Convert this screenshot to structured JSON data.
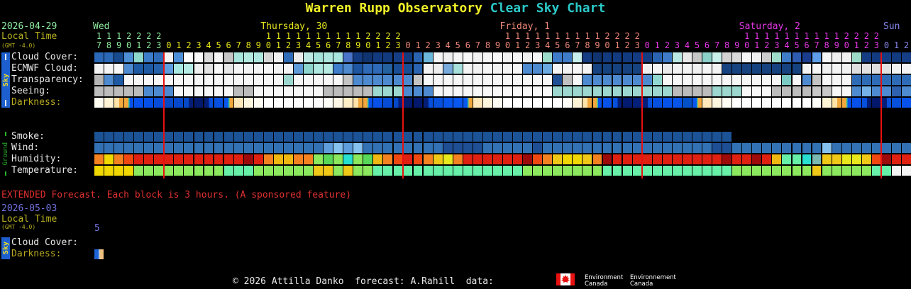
{
  "title": {
    "observatory": "Warren Rupp Observatory",
    "chart": "Clear Sky Chart"
  },
  "header": {
    "date": "2026-04-29",
    "local_time_label": "Local Time",
    "gmt_label": "(GMT -4.0)"
  },
  "extended": {
    "banner": "EXTENDED Forecast. Each block is 3 hours. (A sponsored feature)",
    "date": "2026-05-03",
    "local_time_label": "Local Time",
    "gmt_label": "(GMT -4.0)",
    "hour_label": "5"
  },
  "footer": {
    "credit": "© 2026 Attilla Danko  forecast: A.Rahill  data:",
    "flag_icon": "canada-flag-icon",
    "logo_en_line1": "Environment",
    "logo_en_line2": "Canada",
    "logo_fr_line1": "Environnement",
    "logo_fr_line2": "Canada"
  },
  "chart_data": {
    "type": "heatmap",
    "title": "Warren Rupp Observatory Clear Sky Chart",
    "sky_group_label": "Sky",
    "ground_group_label": "Ground",
    "divider_color": "#E81010",
    "days": [
      {
        "label": "Wed",
        "color": "#8FEE9F",
        "hours": [
          17,
          18,
          19,
          20,
          21,
          22,
          23
        ]
      },
      {
        "label": "Thursday, 30",
        "color": "#E8E81C",
        "hours": [
          0,
          1,
          2,
          3,
          4,
          5,
          6,
          7,
          8,
          9,
          10,
          11,
          12,
          13,
          14,
          15,
          16,
          17,
          18,
          19,
          20,
          21,
          22,
          23
        ]
      },
      {
        "label": "Friday, 1",
        "color": "#F08878",
        "hours": [
          0,
          1,
          2,
          3,
          4,
          5,
          6,
          7,
          8,
          9,
          10,
          11,
          12,
          13,
          14,
          15,
          16,
          17,
          18,
          19,
          20,
          21,
          22,
          23
        ]
      },
      {
        "label": "Saturday, 2",
        "color": "#E838E8",
        "hours": [
          0,
          1,
          2,
          3,
          4,
          5,
          6,
          7,
          8,
          9,
          10,
          11,
          12,
          13,
          14,
          15,
          16,
          17,
          18,
          19,
          20,
          21,
          22,
          23
        ]
      },
      {
        "label": "Sun",
        "color": "#8888F0",
        "hours": [
          0,
          1,
          2
        ]
      }
    ],
    "sky_rows": [
      {
        "label": "Cloud Cover:",
        "label_color": "#E8E8E8",
        "blocks": [
          "#2A68B8",
          "#2A68B8",
          "#174A8F",
          "#4E90D8",
          "#8FD8CE",
          "#3C7CC8",
          "#2E6CB8",
          "#F4F4F4",
          "#4E90D8",
          "#FDFDFD",
          "#FAFAFA",
          "#DADADA",
          "#F6F6F6",
          "#C6C6C6",
          "#A8E6DE",
          "#B4EAE2",
          "#AEE8E0",
          "#D6D6D6",
          "#F2F2F2",
          "#2E6CB8",
          "#EDEDED",
          "#BCEAE4",
          "#A4E4DC",
          "#AEE8E0",
          "#A8E6DE",
          "#4A74C8",
          "#143C82",
          "#0F346F",
          "#123A7E",
          "#123A7E",
          "#153E86",
          "#123A7E",
          "#2A64B0",
          "#6CB8DC",
          "#F6F6F6",
          "#F0F0F0",
          "#F6F6F6",
          "#F8F8F8",
          "#F2F2F2",
          "#F6F6F6",
          "#FAFAFA",
          "#F2F2F2",
          "#F6F6F6",
          "#F0F0F0",
          "#F6F6F6",
          "#9CDCC8",
          "#3E7CC8",
          "#3E7CC8",
          "#C8F0EC",
          "#143C82",
          "#0F346F",
          "#123A7E",
          "#123A7E",
          "#123A7E",
          "#143C82",
          "#143C82",
          "#2A64B0",
          "#3E7CC8",
          "#BCEAE4",
          "#E8E8E8",
          "#C6C6C6",
          "#8CD0CA",
          "#C8F0EC",
          "#D2D2D2",
          "#D8D8D8",
          "#F6F6F6",
          "#F2F2F2",
          "#CCCCCC",
          "#9CDCC8",
          "#3E7CC8",
          "#2E5CB0",
          "#1A3C8C",
          "#5E9EE8",
          "#F6F6F6",
          "#EFEFEF",
          "#F2F2F2",
          "#9CDCC8",
          "#143C82",
          "#123A7E",
          "#143C82",
          "#123A7E",
          "#153E86"
        ]
      },
      {
        "label": "ECMWF Cloud:",
        "label_color": "#E8E8E8",
        "blocks": [
          "#F2F2F2",
          "#F4F4F4",
          "#F6F6F6",
          "#4E8AD0",
          "#1E5AA4",
          "#1E5AA4",
          "#2662AC",
          "#5E9EE0",
          "#A8E8E2",
          "#B6ECE6",
          "#EFEFEF",
          "#E2E2E2",
          "#F8F8F8",
          "#E6E6E6",
          "#F4F4F4",
          "#F2F2F2",
          "#F4F4F4",
          "#F6F6F6",
          "#F2F2F2",
          "#F4F4F4",
          "#5E9AD8",
          "#8CD4CC",
          "#AEE8E0",
          "#B6EAE2",
          "#3E7ECC",
          "#4E8AD0",
          "#1E55A0",
          "#2E6AB8",
          "#2E6AB8",
          "#24619F",
          "#1A4E94",
          "#1A4E94",
          "#2A64B0",
          "#F2F2F2",
          "#EDEDED",
          "#78AADC",
          "#A8E0DC",
          "#F4F4F4",
          "#F2F2F2",
          "#F6F6F6",
          "#F2F2F2",
          "#F4F4F4",
          "#F6F6F6",
          "#4E8AD0",
          "#4E8AD0",
          "#6AAAE0",
          "#F4F4F4",
          "#F2F2F2",
          "#F6F6F6",
          "#F4F4F4",
          "#16427F",
          "#16427F",
          "#16427F",
          "#16427F",
          "#16427F",
          "#EFEFEF",
          "#F4F4F4",
          "#EAEAEA",
          "#F2F2F2",
          "#F4F4F4",
          "#F0F0F0",
          "#F4F4F4",
          "#F2F2F2",
          "#16427F",
          "#16427F",
          "#16427F",
          "#16427F",
          "#16427F",
          "#16427F",
          "#16427F",
          "#16427F",
          "#F2F2F2",
          "#F4F4F4",
          "#F0F0F0",
          "#F4F4F4",
          "#F2F2F2",
          "#DEDEDE",
          "#E2E2E2",
          "#DEDEDE",
          "#E0E0E0",
          "#F2F2F2",
          "#F4F4F4"
        ]
      },
      {
        "label": "Transparency:",
        "label_color": "#E8E8E8",
        "blocks": [
          "#B4B4B4",
          "#4E8AD0",
          "#1E5AA4",
          "#F7F7F7",
          "#F7F7F7",
          "#F7F7F7",
          "#F7F7F7",
          "#F7F7F7",
          "#F7F7F7",
          "#F7F7F7",
          "#F7F7F7",
          "#F7F7F7",
          "#F7F7F7",
          "#F7F7F7",
          "#F7F7F7",
          "#F7F7F7",
          "#F7F7F7",
          "#F7F7F7",
          "#F7F7F7",
          "#9CD8D0",
          "#F7F7F7",
          "#F7F7F7",
          "#F7F7F7",
          "#F7F7F7",
          "#F7F7F7",
          "#C4C4C4",
          "#4E8AD0",
          "#4E8AD0",
          "#4E8AD0",
          "#4E8AD0",
          "#4E8AD0",
          "#4E8AD0",
          "#C4C4C4",
          "#F7F7F7",
          "#F7F7F7",
          "#F7F7F7",
          "#F7F7F7",
          "#F7F7F7",
          "#F7F7F7",
          "#F7F7F7",
          "#F7F7F7",
          "#F7F7F7",
          "#F7F7F7",
          "#F7F7F7",
          "#F7F7F7",
          "#F7F7F7",
          "#1E4E94",
          "#C0C0C0",
          "#F7F7F7",
          "#4E8AD0",
          "#4E8AD0",
          "#4E8AD0",
          "#4E8AD0",
          "#4E8AD0",
          "#4E8AD0",
          "#4E8AD0",
          "#90D8D0",
          "#F7F7F7",
          "#F7F7F7",
          "#F7F7F7",
          "#F7F7F7",
          "#F7F7F7",
          "#F7F7F7",
          "#F7F7F7",
          "#F7F7F7",
          "#F7F7F7",
          "#F7F7F7",
          "#F7F7F7",
          "#F7F7F7",
          "#7CCAC4",
          "#F7F7F7",
          "#4E8AD0",
          "#C4C4C4",
          "#F7F7F7",
          "#F7F7F7",
          "#F7F7F7",
          "#2E6CB8",
          "#2E6CB8",
          "#2E6CB8",
          "#2E6CB8",
          "#2E6CB8",
          "#2E6CB8"
        ]
      },
      {
        "label": "Seeing:",
        "label_color": "#E8E8E8",
        "blocks": [
          "#BCBCBC",
          "#BCBCBC",
          "#BCBCBC",
          "#BCBCBC",
          "#BCBCBC",
          "#4E8AD0",
          "#4E8AD0",
          "#4E8AD0",
          "#F8F8F8",
          "#F8F8F8",
          "#F8F8F8",
          "#F8F8F8",
          "#F8F8F8",
          "#F8F8F8",
          "#BCBCBC",
          "#BCBCBC",
          "#F8F8F8",
          "#F8F8F8",
          "#F8F8F8",
          "#F8F8F8",
          "#F8F8F8",
          "#F8F8F8",
          "#F8F8F8",
          "#BCBCBC",
          "#BCBCBC",
          "#BCBCBC",
          "#BCBCBC",
          "#BCBCBC",
          "#9CD8D0",
          "#9CD8D0",
          "#9CD8D0",
          "#4E8AD0",
          "#4E8AD0",
          "#4E8AD0",
          "#F8F8F8",
          "#F8F8F8",
          "#F8F8F8",
          "#F8F8F8",
          "#F8F8F8",
          "#F8F8F8",
          "#F8F8F8",
          "#F8F8F8",
          "#F8F8F8",
          "#F8F8F8",
          "#F8F8F8",
          "#F8F8F8",
          "#9CD8D0",
          "#9CD8D0",
          "#9CD8D0",
          "#9CD8D0",
          "#9CD8D0",
          "#9CD8D0",
          "#9CD8D0",
          "#9CD8D0",
          "#9CD8D0",
          "#9CD8D0",
          "#9CD8D0",
          "#9CD8D0",
          "#BCBCBC",
          "#BCBCBC",
          "#BCBCBC",
          "#BCBCBC",
          "#9CD8D0",
          "#9CD8D0",
          "#9CD8D0",
          "#F8F8F8",
          "#F8F8F8",
          "#F8F8F8",
          "#BCBCBC",
          "#BCBCBC",
          "#BCBCBC",
          "#BCBCBC",
          "#C8C8C8",
          "#C8C8C8",
          "#F8F8F8",
          "#F8F8F8",
          "#4E8AD0",
          "#74B2E8",
          "#4E8AD0",
          "#4E8AD0",
          "#2E62B0",
          "#4E8AD0"
        ]
      },
      {
        "label": "Darkness:",
        "label_color": "#B8A820",
        "blocks": [
          "#FFFDF2",
          "#FFF4D6",
          "#FFE3A8|#F2A83C",
          "#F2A83C|#2AC8A0|#0752EC",
          "#0752EC",
          "#0650E8",
          "#064CD8",
          "#0548C8",
          "#0548CC",
          "#0548C8|#041E78",
          "#03196B",
          "#041E78|#0650DC",
          "#0650E0",
          "#0857EE|#2AC8A0|#F2A83C",
          "#FFE8BC",
          "#FFF6E0",
          "#FFFDF4",
          "#FFFFFF",
          "#FFFFFF",
          "#FFFFFF",
          "#FFFFFF",
          "#FFFFFF",
          "#FFFFFF",
          "#FFFEF8",
          "#FFF8E6",
          "#FFEFC6",
          "#FFE3A8|#F2A83C",
          "#F2A83C|#2AC8A0|#0752EC",
          "#0751E8",
          "#064CD4",
          "#0548C8|#041E78",
          "#03196B",
          "#03186B",
          "#041E78|#0650DC",
          "#0650DC",
          "#0755EA",
          "#0857EE",
          "#0857EE|#2AC8A0|#F2A83C",
          "#FFE8BC",
          "#FFF6E0",
          "#FFFDF4",
          "#FFFFFF",
          "#FFFFFF",
          "#FFFFFF",
          "#FFFFFF",
          "#FFFFFF",
          "#FFFFFF",
          "#FFFEF8",
          "#FFF4D6",
          "#FFE3A8|#F2A83C",
          "#F2A83C|#2AC8A0|#0752EC",
          "#0752E8",
          "#0650DC|#041E78",
          "#031A6E",
          "#041F78",
          "#041E78|#0650DC",
          "#0650E0",
          "#0752E8",
          "#0654E8",
          "#0450C8",
          "#0857EE|#2AC8A0|#F2A83C",
          "#FFE8BC",
          "#FFF6E0",
          "#FFFDF4",
          "#FFFFFF",
          "#FFFFFF",
          "#FFFFFF",
          "#FFFFFF",
          "#FFFFFF",
          "#FFFFFF",
          "#FFFFFF",
          "#FFFFFF",
          "#FFFEF8",
          "#FFF4D6",
          "#FFE3A8|#F2A83C",
          "#F2A83C|#2AC8A0|#0752EC",
          "#0751E8",
          "#0650DC|#041E78",
          "#03186B",
          "#041E78|#0650DC",
          "#0650DC",
          "#0753EA"
        ]
      }
    ],
    "ground_rows": [
      {
        "label": "Smoke:",
        "label_color": "#E8E8E8",
        "blocks": [
          "#1C5296",
          "#1C5296",
          "#1C5296",
          "#1C5296",
          "#1C5296",
          "#1C5296",
          "#1C5296",
          "#1C5296",
          "#1C5296",
          "#1C5296",
          "#1C5296",
          "#1C5296",
          "#1C5296",
          "#1C5296",
          "#1C5296",
          "#1C5296",
          "#1C5296",
          "#1C5296",
          "#1C5296",
          "#1C5296",
          "#1C5296",
          "#1C5296",
          "#1C5296",
          "#1C5296",
          "#1C5296",
          "#1C5296",
          "#1C5296",
          "#1C5296",
          "#1C5296",
          "#1C5296",
          "#1C5296",
          "#1C5296",
          "#1C5296",
          "#1C5296",
          "#1C5296",
          "#1C5296",
          "#1C5296",
          "#1C5296",
          "#1C5296",
          "#1C5296",
          "#1C5296",
          "#1C5296",
          "#1C5296",
          "#1C5296",
          "#1C5296",
          "#1C5296",
          "#1C5296",
          "#1C5296",
          "#1C5296",
          "#1C5296",
          "#1C5296",
          "#1C5296",
          "#1C5296",
          "#1C5296",
          "#1C5296",
          "#1C5296",
          "#1C5296",
          "#1C5296",
          "#1C5296",
          "#1C5296",
          "#1C5296",
          "#1C5296",
          "#1C5296",
          "#1C5296"
        ]
      },
      {
        "label": "Wind:",
        "label_color": "#E8E8E8",
        "blocks": [
          "#3272B4",
          "#3272B4",
          "#3272B4",
          "#3272B4",
          "#3272B4",
          "#3272B4",
          "#3272B4",
          "#3272B4",
          "#3272B4",
          "#3272B4",
          "#3272B4",
          "#3272B4",
          "#3272B4",
          "#3272B4",
          "#3272B4",
          "#3272B4",
          "#3272B4",
          "#3272B4",
          "#3272B4",
          "#3272B4",
          "#3272B4",
          "#3272B4",
          "#3272B4",
          "#5E9EDC",
          "#85C2F0",
          "#5E9EDC",
          "#85C2F0",
          "#3272B4",
          "#3272B4",
          "#3272B4",
          "#3272B4",
          "#3272B4",
          "#3272B4",
          "#3272B4",
          "#3272B4",
          "#1E4E94",
          "#1E4E94",
          "#1E4E94",
          "#1E4E94",
          "#3272B4",
          "#3272B4",
          "#3272B4",
          "#3272B4",
          "#3272B4",
          "#1E4E94",
          "#3272B4",
          "#3272B4",
          "#3272B4",
          "#3272B4",
          "#3272B4",
          "#3272B4",
          "#3272B4",
          "#3272B4",
          "#3272B4",
          "#3272B4",
          "#3272B4",
          "#3272B4",
          "#3272B4",
          "#3272B4",
          "#3272B4",
          "#3272B4",
          "#3272B4",
          "#1E4E94",
          "#1E4E94",
          "#3272B4",
          "#3272B4",
          "#3272B4",
          "#3272B4",
          "#3272B4",
          "#3272B4",
          "#3272B4",
          "#3272B4",
          "#3272B4",
          "#85C2F0",
          "#3272B4",
          "#3272B4",
          "#3272B4",
          "#3272B4",
          "#3272B4",
          "#3272B4",
          "#3272B4",
          "#3272B4"
        ]
      },
      {
        "label": "Humidity:",
        "label_color": "#E8E8E8",
        "blocks": [
          "#F58220",
          "#F0D800",
          "#F58220",
          "#F04810",
          "#E02010",
          "#E02010",
          "#E02010",
          "#E02010",
          "#E02010",
          "#E02010",
          "#E02010",
          "#E02010",
          "#E02010",
          "#E02010",
          "#E02010",
          "#9E0A0A",
          "#E02010",
          "#F58220",
          "#F0B810",
          "#F0B810",
          "#F58220",
          "#F58220",
          "#8CE85C",
          "#58D858",
          "#8CE85C",
          "#28E0D0",
          "#8CE85C",
          "#58D858",
          "#F0B810",
          "#F58220",
          "#F04810",
          "#E02010",
          "#F04810",
          "#F58220",
          "#F0C818",
          "#E8E81C",
          "#F58220",
          "#E02010",
          "#E02010",
          "#E02010",
          "#E02010",
          "#E02010",
          "#E02010",
          "#9E0A0A",
          "#F04810",
          "#F58220",
          "#F0C818",
          "#F0D800",
          "#F0D800",
          "#F0C818",
          "#F58220",
          "#9E0A0A",
          "#E02010",
          "#E02010",
          "#E02010",
          "#E02010",
          "#E02010",
          "#E02010",
          "#E02010",
          "#E02010",
          "#E02010",
          "#E02010",
          "#E02010",
          "#9E0A0A",
          "#E02010",
          "#E02010",
          "#9E0A0A",
          "#E02010",
          "#F0B810",
          "#66F0A8",
          "#66F0A8",
          "#28E0D0",
          "#7AB8B0",
          "#F0C818",
          "#F0C818",
          "#E8E81C",
          "#E8E81C",
          "#F0C818",
          "#F04810",
          "#9E0A0A",
          "#E02010",
          "#E02010"
        ]
      },
      {
        "label": "Temperature:",
        "label_color": "#E8E8E8",
        "blocks": [
          "#F0D800",
          "#F0D800",
          "#F0D800",
          "#F0D800",
          "#8CE85C",
          "#8CE85C",
          "#8CE85C",
          "#8CE85C",
          "#8CE85C",
          "#8CE85C",
          "#8CE85C",
          "#8CE85C",
          "#8CE85C",
          "#66F0A8",
          "#66F0A8",
          "#66F0A8",
          "#8CE85C",
          "#8CE85C",
          "#8CE85C",
          "#8CE85C",
          "#8CE85C",
          "#8CE85C",
          "#F0C818",
          "#F0C818",
          "#8CE85C",
          "#F0C818",
          "#8CE85C",
          "#8CE85C",
          "#66F0A8",
          "#66F0A8",
          "#66F0A8",
          "#66F0A8",
          "#66F0A8",
          "#66F0A8",
          "#66F0A8",
          "#66F0A8",
          "#66F0A8",
          "#66F0A8",
          "#66F0A8",
          "#66F0A8",
          "#66F0A8",
          "#66F0A8",
          "#66F0A8",
          "#8CE85C",
          "#8CE85C",
          "#8CE85C",
          "#8CE85C",
          "#8CE85C",
          "#8CE85C",
          "#8CE85C",
          "#8CE85C",
          "#66F0A8",
          "#66F0A8",
          "#66F0A8",
          "#66F0A8",
          "#66F0A8",
          "#66F0A8",
          "#66F0A8",
          "#66F0A8",
          "#66F0A8",
          "#66F0A8",
          "#66F0A8",
          "#66F0A8",
          "#66F0A8",
          "#8CE85C",
          "#8CE85C",
          "#8CE85C",
          "#8CE85C",
          "#8CE85C",
          "#8CE85C",
          "#8CE85C",
          "#8CE85C",
          "#F0C818",
          "#8CE85C",
          "#8CE85C",
          "#8CE85C",
          "#8CE85C",
          "#8CE85C",
          "#66F0A8",
          "#66F0A8",
          "#F4F4F4",
          "#F4F4F4"
        ]
      }
    ],
    "extended_rows": [
      {
        "label": "Cloud Cover:",
        "label_color": "#E8E8E8",
        "blocks": []
      },
      {
        "label": "Darkness:",
        "label_color": "#B8A820",
        "blocks": [
          "#1E64D8|#9CC8F0|#F0C080"
        ]
      }
    ]
  }
}
